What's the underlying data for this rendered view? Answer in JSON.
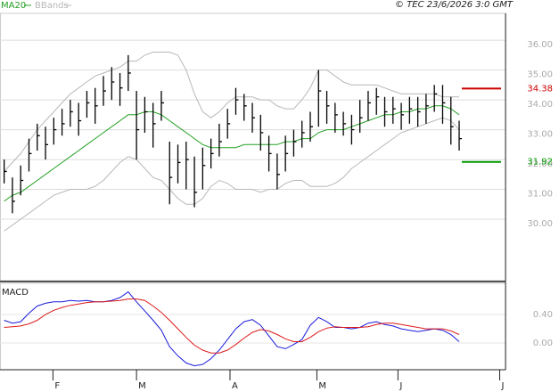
{
  "chart_data": [
    {
      "type": "ohlc",
      "annotation": "© TEC 23/6/2026 3:0 GMT",
      "x": [
        0,
        1,
        2,
        3,
        4,
        5,
        6,
        7,
        8,
        9,
        10,
        11,
        12,
        13,
        14,
        15,
        16,
        17,
        18,
        19,
        20,
        21,
        22,
        23,
        24,
        25,
        26,
        27,
        28,
        29,
        30,
        31,
        32,
        33,
        34,
        35,
        36,
        37,
        38,
        39,
        40,
        41,
        42,
        43,
        44,
        45,
        46,
        47,
        48,
        49,
        50,
        51,
        52,
        53,
        54,
        55
      ],
      "high": [
        32.0,
        31.4,
        31.8,
        32.7,
        33.2,
        33.1,
        33.4,
        33.7,
        34.0,
        33.9,
        34.3,
        34.4,
        34.8,
        35.1,
        34.9,
        35.5,
        34.3,
        34.1,
        33.9,
        34.3,
        32.6,
        32.5,
        32.6,
        32.1,
        32.4,
        32.7,
        33.2,
        33.7,
        34.4,
        34.2,
        33.9,
        33.5,
        32.8,
        32.2,
        32.8,
        33.0,
        33.3,
        33.6,
        35.0,
        34.3,
        33.9,
        33.6,
        33.5,
        34.0,
        34.3,
        34.4,
        34.1,
        34.1,
        33.9,
        34.1,
        34.1,
        34.2,
        34.5,
        34.5,
        34.1,
        33.3
      ],
      "low": [
        31.2,
        30.2,
        30.8,
        31.6,
        32.3,
        32.0,
        32.5,
        32.8,
        33.1,
        32.8,
        33.4,
        33.2,
        33.8,
        34.0,
        33.8,
        34.3,
        32.0,
        32.9,
        32.4,
        33.3,
        30.5,
        31.2,
        31.0,
        30.4,
        31.0,
        31.7,
        32.1,
        32.7,
        33.5,
        33.3,
        32.9,
        32.3,
        31.6,
        31.0,
        31.6,
        32.1,
        32.4,
        32.6,
        33.1,
        33.2,
        32.9,
        32.8,
        32.5,
        32.9,
        33.3,
        33.5,
        33.1,
        33.2,
        33.0,
        33.2,
        33.1,
        33.2,
        33.6,
        33.2,
        32.5,
        32.3
      ],
      "close": [
        31.6,
        30.6,
        31.3,
        32.2,
        32.8,
        32.5,
        33.0,
        33.2,
        33.6,
        33.3,
        33.9,
        33.8,
        34.3,
        34.6,
        34.4,
        34.9,
        33.0,
        33.6,
        33.2,
        33.9,
        31.4,
        31.9,
        32.0,
        30.9,
        31.8,
        32.2,
        32.6,
        33.2,
        34.0,
        33.8,
        33.4,
        32.9,
        32.2,
        31.5,
        32.2,
        32.6,
        32.9,
        33.1,
        34.3,
        33.8,
        33.5,
        33.2,
        33.0,
        33.4,
        33.9,
        34.1,
        33.6,
        33.7,
        33.5,
        33.7,
        33.6,
        33.8,
        34.2,
        33.9,
        33.1,
        32.7
      ],
      "color": "#000000",
      "series": [
        {
          "name": "MA20",
          "color": "#22a022",
          "values": [
            30.6,
            30.8,
            30.9,
            31.1,
            31.3,
            31.5,
            31.7,
            31.9,
            32.1,
            32.3,
            32.5,
            32.7,
            32.9,
            33.1,
            33.3,
            33.5,
            33.5,
            33.6,
            33.6,
            33.5,
            33.3,
            33.1,
            32.9,
            32.7,
            32.5,
            32.4,
            32.4,
            32.4,
            32.4,
            32.5,
            32.5,
            32.5,
            32.5,
            32.5,
            32.6,
            32.6,
            32.7,
            32.7,
            32.9,
            33.0,
            33.0,
            33.0,
            33.1,
            33.2,
            33.3,
            33.4,
            33.5,
            33.5,
            33.6,
            33.6,
            33.7,
            33.7,
            33.8,
            33.8,
            33.7,
            33.5
          ]
        }
      ],
      "bands": {
        "name": "BBands",
        "color": "#b8b8b8",
        "upper": [
          31.6,
          31.9,
          32.2,
          32.6,
          33.0,
          33.3,
          33.6,
          33.9,
          34.2,
          34.4,
          34.6,
          34.8,
          34.9,
          35.0,
          35.1,
          35.3,
          35.3,
          35.5,
          35.6,
          35.6,
          35.6,
          35.5,
          35.0,
          34.2,
          33.6,
          33.4,
          33.6,
          33.9,
          34.1,
          34.1,
          34.1,
          34.0,
          34.0,
          33.8,
          33.7,
          33.7,
          34.0,
          34.4,
          35.0,
          35.0,
          34.8,
          34.6,
          34.5,
          34.5,
          34.5,
          34.5,
          34.4,
          34.3,
          34.2,
          34.2,
          34.2,
          34.2,
          34.2,
          34.1,
          34.1,
          34.1
        ],
        "lower": [
          29.6,
          29.8,
          30.0,
          30.2,
          30.4,
          30.6,
          30.8,
          30.9,
          31.0,
          31.0,
          31.0,
          31.1,
          31.3,
          31.6,
          31.9,
          32.1,
          32.0,
          31.7,
          31.4,
          31.3,
          31.0,
          30.7,
          30.5,
          30.5,
          30.7,
          31.1,
          31.3,
          31.2,
          31.0,
          31.0,
          31.0,
          30.9,
          31.0,
          31.0,
          31.2,
          31.3,
          31.3,
          31.1,
          31.1,
          31.1,
          31.2,
          31.4,
          31.7,
          31.9,
          32.1,
          32.3,
          32.5,
          32.7,
          32.9,
          33.0,
          33.1,
          33.2,
          33.3,
          33.4,
          33.3,
          33.0
        ]
      },
      "levels": [
        {
          "value": 34.38,
          "color": "#cc0000"
        },
        {
          "value": 31.92,
          "color": "#009900"
        }
      ],
      "xlim": [
        -0.5,
        60.6
      ],
      "ylim": [
        27.94,
        36.9
      ],
      "yticks": [
        {
          "value": 30,
          "label": "30.00"
        },
        {
          "value": 31,
          "label": "31.00"
        },
        {
          "value": 32,
          "label": "32.00"
        },
        {
          "value": 33,
          "label": "33.00"
        },
        {
          "value": 34,
          "label": "34.00"
        },
        {
          "value": 35,
          "label": "35.00"
        },
        {
          "value": 36,
          "label": "36.00"
        }
      ],
      "grid": true
    },
    {
      "type": "macd",
      "title": "MACD",
      "x": [
        0,
        1,
        2,
        3,
        4,
        5,
        6,
        7,
        8,
        9,
        10,
        11,
        12,
        13,
        14,
        15,
        16,
        17,
        18,
        19,
        20,
        21,
        22,
        23,
        24,
        25,
        26,
        27,
        28,
        29,
        30,
        31,
        32,
        33,
        34,
        35,
        36,
        37,
        38,
        39,
        40,
        41,
        42,
        43,
        44,
        45,
        46,
        47,
        48,
        49,
        50,
        51,
        52,
        53,
        54,
        55
      ],
      "series": [
        {
          "color": "#1a1add",
          "values": [
            0.32,
            0.28,
            0.3,
            0.42,
            0.52,
            0.56,
            0.58,
            0.58,
            0.6,
            0.59,
            0.6,
            0.58,
            0.58,
            0.6,
            0.64,
            0.72,
            0.58,
            0.45,
            0.32,
            0.18,
            -0.05,
            -0.18,
            -0.28,
            -0.32,
            -0.3,
            -0.22,
            -0.1,
            0.05,
            0.2,
            0.3,
            0.33,
            0.25,
            0.1,
            -0.05,
            -0.08,
            -0.02,
            0.05,
            0.25,
            0.36,
            0.3,
            0.22,
            0.22,
            0.2,
            0.22,
            0.28,
            0.3,
            0.26,
            0.24,
            0.2,
            0.18,
            0.16,
            0.18,
            0.2,
            0.18,
            0.12,
            0.02
          ]
        },
        {
          "color": "#dd1a1a",
          "values": [
            0.22,
            0.23,
            0.24,
            0.27,
            0.32,
            0.4,
            0.46,
            0.5,
            0.53,
            0.55,
            0.57,
            0.58,
            0.58,
            0.59,
            0.6,
            0.62,
            0.62,
            0.6,
            0.52,
            0.43,
            0.32,
            0.2,
            0.08,
            -0.03,
            -0.1,
            -0.14,
            -0.14,
            -0.1,
            -0.02,
            0.07,
            0.15,
            0.19,
            0.17,
            0.12,
            0.06,
            0.02,
            0.02,
            0.08,
            0.16,
            0.21,
            0.23,
            0.22,
            0.22,
            0.22,
            0.23,
            0.26,
            0.28,
            0.28,
            0.26,
            0.24,
            0.22,
            0.2,
            0.2,
            0.2,
            0.17,
            0.12
          ]
        }
      ],
      "xlim": [
        -0.5,
        60.6
      ],
      "xticks": [
        {
          "value": 5.9,
          "label": "F"
        },
        {
          "value": 16,
          "label": "M"
        },
        {
          "value": 27.3,
          "label": "A"
        },
        {
          "value": 37.8,
          "label": "M"
        },
        {
          "value": 47.6,
          "label": "J"
        },
        {
          "value": 59.9,
          "label": "J"
        }
      ],
      "ylim": [
        -0.375,
        0.84
      ],
      "yticks": [
        {
          "value": 0,
          "label": "0.00"
        },
        {
          "value": 0.4,
          "label": "0.40"
        }
      ]
    }
  ]
}
